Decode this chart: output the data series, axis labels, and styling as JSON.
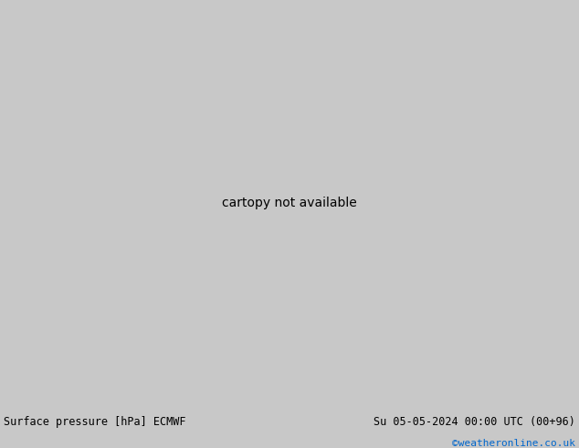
{
  "title_left": "Surface pressure [hPa] ECMWF",
  "title_right": "Su 05-05-2024 00:00 UTC (00+96)",
  "credit": "©weatheronline.co.uk",
  "fig_width": 6.34,
  "fig_height": 4.9,
  "dpi": 100,
  "ocean_color": "#c8c8c8",
  "land_color": "#b8e8a0",
  "bottom_color": "#e0e0e0",
  "map_extent": [
    90,
    160,
    0,
    55
  ],
  "isobar_blue": "#0000cc",
  "isobar_red": "#cc0000",
  "isobar_black": "#000000"
}
